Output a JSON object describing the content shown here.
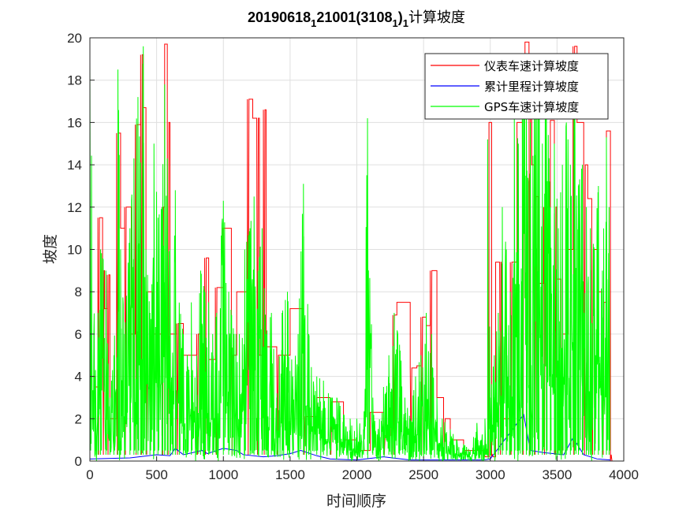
{
  "chart_data": {
    "type": "line",
    "title": {
      "main": "20190618",
      "sub1": "1",
      "mid": "21001(3108",
      "sub2": "1",
      "close": ")",
      "sub3": "1",
      "tail": "计算坡度"
    },
    "xlabel": "时间顺序",
    "ylabel": "坡度",
    "xlim": [
      0,
      4000
    ],
    "ylim": [
      0,
      20
    ],
    "xticks": [
      0,
      500,
      1000,
      1500,
      2000,
      2500,
      3000,
      3500,
      4000
    ],
    "yticks": [
      0,
      2,
      4,
      6,
      8,
      10,
      12,
      14,
      16,
      18,
      20
    ],
    "grid": true,
    "legend_position": "top-right",
    "series": [
      {
        "name": "仪表车速计算坡度",
        "color": "#ff0000",
        "points": [
          [
            0,
            4
          ],
          [
            40,
            3.5
          ],
          [
            60,
            11.5
          ],
          [
            90,
            11.5
          ],
          [
            95,
            9
          ],
          [
            110,
            7.2
          ],
          [
            130,
            8.8
          ],
          [
            150,
            2
          ],
          [
            200,
            15.5
          ],
          [
            230,
            11
          ],
          [
            260,
            12
          ],
          [
            310,
            6
          ],
          [
            340,
            15.9
          ],
          [
            370,
            15.9
          ],
          [
            380,
            19.2
          ],
          [
            400,
            16.7
          ],
          [
            420,
            8
          ],
          [
            470,
            6
          ],
          [
            540,
            12
          ],
          [
            560,
            19.7
          ],
          [
            580,
            16
          ],
          [
            600,
            6
          ],
          [
            650,
            6.5
          ],
          [
            700,
            5
          ],
          [
            800,
            6
          ],
          [
            830,
            4
          ],
          [
            860,
            9.6
          ],
          [
            890,
            4.8
          ],
          [
            940,
            8.2
          ],
          [
            1000,
            11
          ],
          [
            1060,
            5
          ],
          [
            1100,
            8
          ],
          [
            1180,
            17.1
          ],
          [
            1220,
            16.2
          ],
          [
            1250,
            16.2
          ],
          [
            1270,
            5
          ],
          [
            1300,
            16.6
          ],
          [
            1320,
            5.4
          ],
          [
            1400,
            5
          ],
          [
            1500,
            7.2
          ],
          [
            1600,
            2.1
          ],
          [
            1700,
            3
          ],
          [
            1800,
            2.8
          ],
          [
            1900,
            1
          ],
          [
            2000,
            0.5
          ],
          [
            2100,
            2.3
          ],
          [
            2200,
            1.2
          ],
          [
            2250,
            1.8
          ],
          [
            2270,
            6.9
          ],
          [
            2300,
            7.5
          ],
          [
            2400,
            4.4
          ],
          [
            2450,
            4.5
          ],
          [
            2480,
            6.8
          ],
          [
            2520,
            6.4
          ],
          [
            2550,
            9
          ],
          [
            2600,
            3
          ],
          [
            2650,
            2
          ],
          [
            2700,
            1
          ],
          [
            2800,
            0.5
          ],
          [
            2900,
            0.5
          ],
          [
            2950,
            0.2
          ],
          [
            2990,
            16
          ],
          [
            3010,
            0.2
          ],
          [
            3040,
            9.4
          ],
          [
            3070,
            9.4
          ],
          [
            3080,
            2
          ],
          [
            3150,
            9.4
          ],
          [
            3200,
            16
          ],
          [
            3240,
            16.6
          ],
          [
            3260,
            19.8
          ],
          [
            3290,
            17.5
          ],
          [
            3310,
            14
          ],
          [
            3330,
            12.5
          ],
          [
            3360,
            8.4
          ],
          [
            3400,
            12
          ],
          [
            3450,
            16.1
          ],
          [
            3480,
            12
          ],
          [
            3500,
            8.6
          ],
          [
            3530,
            6
          ],
          [
            3580,
            10
          ],
          [
            3620,
            19.6
          ],
          [
            3650,
            16
          ],
          [
            3700,
            14
          ],
          [
            3730,
            12.4
          ],
          [
            3760,
            10
          ],
          [
            3800,
            8
          ],
          [
            3840,
            7.5
          ],
          [
            3870,
            15.6
          ],
          [
            3900,
            0
          ]
        ]
      },
      {
        "name": "累计里程计算坡度",
        "color": "#0000ff",
        "points": [
          [
            0,
            0.1
          ],
          [
            300,
            0.15
          ],
          [
            500,
            0.3
          ],
          [
            600,
            0.25
          ],
          [
            640,
            0.6
          ],
          [
            700,
            0.3
          ],
          [
            840,
            0.5
          ],
          [
            880,
            0.35
          ],
          [
            1000,
            0.6
          ],
          [
            1100,
            0.5
          ],
          [
            1150,
            0.3
          ],
          [
            1300,
            0.2
          ],
          [
            1400,
            0.25
          ],
          [
            1500,
            0.35
          ],
          [
            1580,
            0.5
          ],
          [
            1700,
            0.25
          ],
          [
            1800,
            0.1
          ],
          [
            2000,
            0.05
          ],
          [
            2200,
            0.2
          ],
          [
            2400,
            0.05
          ],
          [
            2700,
            0.05
          ],
          [
            2950,
            0.05
          ],
          [
            3000,
            0.1
          ],
          [
            3250,
            2.2
          ],
          [
            3300,
            0.5
          ],
          [
            3400,
            0.4
          ],
          [
            3550,
            0.3
          ],
          [
            3620,
            1.1
          ],
          [
            3700,
            0.3
          ],
          [
            3800,
            0.1
          ],
          [
            3900,
            0.05
          ]
        ]
      },
      {
        "name": "GPS车速计算坡度",
        "color": "#00ff00",
        "peaks": [
          [
            0,
            18.9
          ],
          [
            40,
            4
          ],
          [
            60,
            7
          ],
          [
            80,
            10
          ],
          [
            120,
            9
          ],
          [
            150,
            3
          ],
          [
            180,
            5
          ],
          [
            210,
            18.5
          ],
          [
            230,
            10
          ],
          [
            260,
            6
          ],
          [
            300,
            11
          ],
          [
            330,
            14.3
          ],
          [
            360,
            17.2
          ],
          [
            380,
            14.1
          ],
          [
            400,
            19.6
          ],
          [
            420,
            10
          ],
          [
            450,
            7
          ],
          [
            480,
            15
          ],
          [
            510,
            11.5
          ],
          [
            540,
            12
          ],
          [
            560,
            17.8
          ],
          [
            580,
            14.3
          ],
          [
            600,
            10
          ],
          [
            620,
            5
          ],
          [
            640,
            12.8
          ],
          [
            670,
            7.4
          ],
          [
            700,
            6
          ],
          [
            730,
            5
          ],
          [
            760,
            7.5
          ],
          [
            800,
            5
          ],
          [
            830,
            9
          ],
          [
            860,
            8
          ],
          [
            890,
            7.5
          ],
          [
            920,
            6
          ],
          [
            950,
            7
          ],
          [
            1000,
            12.3
          ],
          [
            1040,
            8
          ],
          [
            1080,
            6
          ],
          [
            1120,
            6
          ],
          [
            1160,
            10
          ],
          [
            1200,
            11
          ],
          [
            1230,
            12.5
          ],
          [
            1260,
            9
          ],
          [
            1290,
            11
          ],
          [
            1320,
            6
          ],
          [
            1360,
            7
          ],
          [
            1400,
            3
          ],
          [
            1440,
            7
          ],
          [
            1480,
            8
          ],
          [
            1520,
            4
          ],
          [
            1560,
            6
          ],
          [
            1600,
            13.1
          ],
          [
            1640,
            6
          ],
          [
            1700,
            4
          ],
          [
            1750,
            3.8
          ],
          [
            1800,
            3
          ],
          [
            1850,
            3
          ],
          [
            1900,
            2.2
          ],
          [
            1950,
            2
          ],
          [
            2000,
            2
          ],
          [
            2050,
            1.5
          ],
          [
            2080,
            16.2
          ],
          [
            2120,
            3
          ],
          [
            2160,
            1.5
          ],
          [
            2200,
            3.5
          ],
          [
            2240,
            5
          ],
          [
            2280,
            7
          ],
          [
            2320,
            5.5
          ],
          [
            2360,
            3
          ],
          [
            2400,
            2
          ],
          [
            2440,
            4
          ],
          [
            2480,
            5
          ],
          [
            2520,
            7
          ],
          [
            2560,
            6
          ],
          [
            2600,
            3
          ],
          [
            2640,
            2
          ],
          [
            2700,
            1.5
          ],
          [
            2750,
            1
          ],
          [
            2800,
            0.8
          ],
          [
            2850,
            0.5
          ],
          [
            2900,
            1.8
          ],
          [
            2930,
            1
          ],
          [
            2960,
            2
          ],
          [
            2980,
            15.2
          ],
          [
            3000,
            3
          ],
          [
            3030,
            5
          ],
          [
            3060,
            7
          ],
          [
            3090,
            12
          ],
          [
            3120,
            10
          ],
          [
            3150,
            8
          ],
          [
            3180,
            16.4
          ],
          [
            3210,
            15
          ],
          [
            3240,
            19
          ],
          [
            3270,
            18.5
          ],
          [
            3300,
            16
          ],
          [
            3330,
            18.3
          ],
          [
            3360,
            18.5
          ],
          [
            3390,
            15
          ],
          [
            3420,
            18.6
          ],
          [
            3450,
            12
          ],
          [
            3480,
            15
          ],
          [
            3510,
            11
          ],
          [
            3540,
            14
          ],
          [
            3570,
            16
          ],
          [
            3600,
            14
          ],
          [
            3630,
            19
          ],
          [
            3660,
            13
          ],
          [
            3690,
            14
          ],
          [
            3720,
            12
          ],
          [
            3750,
            11
          ],
          [
            3780,
            10
          ],
          [
            3810,
            13
          ],
          [
            3840,
            9
          ],
          [
            3870,
            15.3
          ],
          [
            3890,
            12
          ]
        ]
      }
    ]
  }
}
